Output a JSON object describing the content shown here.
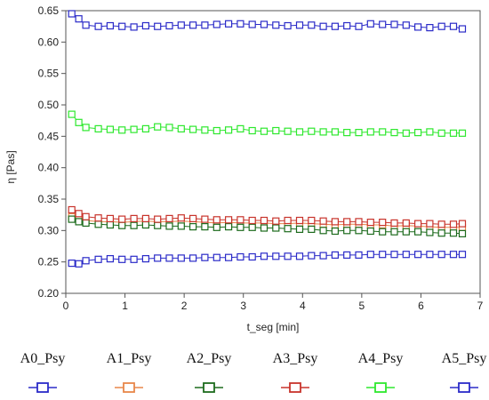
{
  "chart_data": {
    "type": "line",
    "title": "",
    "xlabel": "t_seg [min]",
    "ylabel": "η [Pas]",
    "xlim": [
      0,
      7
    ],
    "ylim": [
      0.2,
      0.65
    ],
    "x_ticks": [
      0,
      1,
      2,
      3,
      4,
      5,
      6,
      7
    ],
    "y_ticks": [
      0.2,
      0.25,
      0.3,
      0.35,
      0.4,
      0.45,
      0.5,
      0.55,
      0.6,
      0.65
    ],
    "grid": false,
    "legend_position": "bottom",
    "marker": "square",
    "series": [
      {
        "name": "A0_Psy",
        "color": "#2b2bc8",
        "x": [
          0.1,
          0.22,
          0.34,
          0.55,
          0.75,
          0.95,
          1.15,
          1.35,
          1.55,
          1.75,
          1.95,
          2.15,
          2.35,
          2.55,
          2.75,
          2.95,
          3.15,
          3.35,
          3.55,
          3.75,
          3.95,
          4.15,
          4.35,
          4.55,
          4.75,
          4.95,
          5.15,
          5.35,
          5.55,
          5.75,
          5.95,
          6.15,
          6.35,
          6.55,
          6.7
        ],
        "values": [
          0.645,
          0.637,
          0.627,
          0.625,
          0.626,
          0.625,
          0.624,
          0.626,
          0.625,
          0.626,
          0.627,
          0.627,
          0.627,
          0.628,
          0.629,
          0.629,
          0.628,
          0.628,
          0.627,
          0.626,
          0.627,
          0.627,
          0.625,
          0.625,
          0.626,
          0.625,
          0.629,
          0.628,
          0.628,
          0.627,
          0.624,
          0.623,
          0.625,
          0.625,
          0.621
        ]
      },
      {
        "name": "A1_Psy",
        "color": "#e8874a",
        "x": [
          0.1,
          0.22,
          0.34,
          0.55,
          0.75,
          0.95,
          1.15,
          1.35,
          1.55,
          1.75,
          1.95,
          2.15,
          2.35,
          2.55,
          2.75,
          2.95,
          3.15,
          3.35,
          3.55,
          3.75,
          3.95,
          4.15,
          4.35,
          4.55,
          4.75,
          4.95,
          5.15,
          5.35,
          5.55,
          5.75,
          5.95,
          6.15,
          6.35,
          6.55,
          6.7
        ],
        "values": [
          0.322,
          0.318,
          0.316,
          0.314,
          0.314,
          0.313,
          0.314,
          0.315,
          0.314,
          0.314,
          0.315,
          0.314,
          0.313,
          0.312,
          0.313,
          0.312,
          0.312,
          0.312,
          0.311,
          0.311,
          0.312,
          0.311,
          0.31,
          0.309,
          0.31,
          0.31,
          0.309,
          0.309,
          0.307,
          0.308,
          0.307,
          0.306,
          0.305,
          0.305,
          0.305
        ]
      },
      {
        "name": "A2_Psy",
        "color": "#1d6b1d",
        "x": [
          0.1,
          0.22,
          0.34,
          0.55,
          0.75,
          0.95,
          1.15,
          1.35,
          1.55,
          1.75,
          1.95,
          2.15,
          2.35,
          2.55,
          2.75,
          2.95,
          3.15,
          3.35,
          3.55,
          3.75,
          3.95,
          4.15,
          4.35,
          4.55,
          4.75,
          4.95,
          5.15,
          5.35,
          5.55,
          5.75,
          5.95,
          6.15,
          6.35,
          6.55,
          6.7
        ],
        "values": [
          0.318,
          0.314,
          0.312,
          0.31,
          0.309,
          0.308,
          0.308,
          0.309,
          0.308,
          0.307,
          0.307,
          0.306,
          0.306,
          0.305,
          0.306,
          0.305,
          0.305,
          0.304,
          0.304,
          0.303,
          0.302,
          0.302,
          0.3,
          0.299,
          0.3,
          0.3,
          0.299,
          0.298,
          0.298,
          0.298,
          0.298,
          0.297,
          0.296,
          0.296,
          0.295
        ]
      },
      {
        "name": "A3_Psy",
        "color": "#c8342c",
        "x": [
          0.1,
          0.22,
          0.34,
          0.55,
          0.75,
          0.95,
          1.15,
          1.35,
          1.55,
          1.75,
          1.95,
          2.15,
          2.35,
          2.55,
          2.75,
          2.95,
          3.15,
          3.35,
          3.55,
          3.75,
          3.95,
          4.15,
          4.35,
          4.55,
          4.75,
          4.95,
          5.15,
          5.35,
          5.55,
          5.75,
          5.95,
          6.15,
          6.35,
          6.55,
          6.7
        ],
        "values": [
          0.333,
          0.327,
          0.322,
          0.32,
          0.319,
          0.318,
          0.319,
          0.319,
          0.318,
          0.319,
          0.32,
          0.319,
          0.318,
          0.317,
          0.317,
          0.317,
          0.316,
          0.316,
          0.315,
          0.316,
          0.316,
          0.316,
          0.315,
          0.314,
          0.314,
          0.314,
          0.313,
          0.313,
          0.312,
          0.312,
          0.311,
          0.311,
          0.31,
          0.31,
          0.311
        ]
      },
      {
        "name": "A4_Psy",
        "color": "#2ee82e",
        "x": [
          0.1,
          0.22,
          0.34,
          0.55,
          0.75,
          0.95,
          1.15,
          1.35,
          1.55,
          1.75,
          1.95,
          2.15,
          2.35,
          2.55,
          2.75,
          2.95,
          3.15,
          3.35,
          3.55,
          3.75,
          3.95,
          4.15,
          4.35,
          4.55,
          4.75,
          4.95,
          5.15,
          5.35,
          5.55,
          5.75,
          5.95,
          6.15,
          6.35,
          6.55,
          6.7
        ],
        "values": [
          0.485,
          0.472,
          0.464,
          0.462,
          0.461,
          0.46,
          0.461,
          0.462,
          0.465,
          0.464,
          0.462,
          0.461,
          0.46,
          0.459,
          0.46,
          0.462,
          0.459,
          0.458,
          0.459,
          0.458,
          0.457,
          0.458,
          0.457,
          0.457,
          0.456,
          0.456,
          0.457,
          0.457,
          0.456,
          0.455,
          0.456,
          0.457,
          0.455,
          0.455,
          0.455
        ]
      },
      {
        "name": "A5_Psy",
        "color": "#2b2bc8",
        "x": [
          0.1,
          0.22,
          0.34,
          0.55,
          0.75,
          0.95,
          1.15,
          1.35,
          1.55,
          1.75,
          1.95,
          2.15,
          2.35,
          2.55,
          2.75,
          2.95,
          3.15,
          3.35,
          3.55,
          3.75,
          3.95,
          4.15,
          4.35,
          4.55,
          4.75,
          4.95,
          5.15,
          5.35,
          5.55,
          5.75,
          5.95,
          6.15,
          6.35,
          6.55,
          6.7
        ],
        "values": [
          0.248,
          0.247,
          0.252,
          0.254,
          0.255,
          0.254,
          0.254,
          0.255,
          0.256,
          0.256,
          0.256,
          0.256,
          0.257,
          0.257,
          0.257,
          0.258,
          0.258,
          0.259,
          0.259,
          0.259,
          0.259,
          0.26,
          0.26,
          0.261,
          0.261,
          0.261,
          0.262,
          0.262,
          0.262,
          0.262,
          0.262,
          0.262,
          0.262,
          0.262,
          0.262
        ]
      }
    ]
  }
}
